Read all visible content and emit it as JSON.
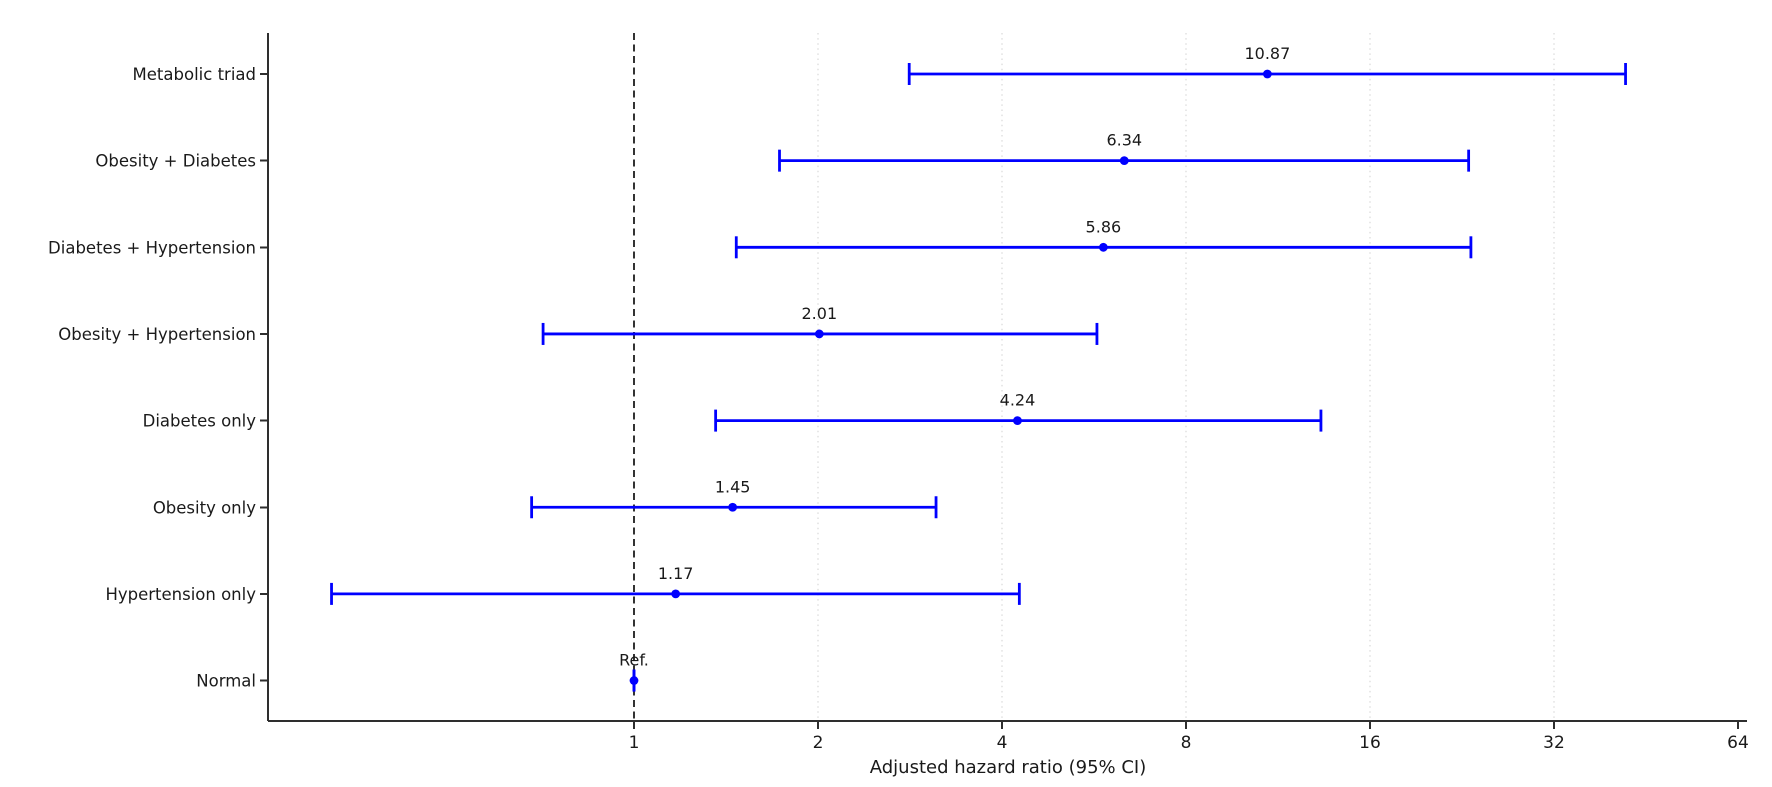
{
  "chart_data": {
    "type": "scatter",
    "variant": "forest_plot_errorbar",
    "title": "",
    "xlabel": "Adjusted hazard ratio (95% CI)",
    "ylabel": "",
    "x_scale": "log2",
    "xlim": [
      0.25,
      66
    ],
    "x_ticks": [
      1,
      2,
      4,
      8,
      16,
      32,
      64
    ],
    "x_tick_labels": [
      "1",
      "2",
      "4",
      "8",
      "16",
      "32",
      "64"
    ],
    "x_grid": [
      2,
      4,
      8,
      16,
      32
    ],
    "grid": "vertical-dotted",
    "legend": "none",
    "reference_line": {
      "x": 1,
      "style": "dashed"
    },
    "rows": [
      {
        "label": "Metabolic triad",
        "hr": 10.87,
        "ci_low": 2.82,
        "ci_high": 41.9,
        "value_label": "10.87"
      },
      {
        "label": "Obesity + Diabetes",
        "hr": 6.34,
        "ci_low": 1.73,
        "ci_high": 23.2,
        "value_label": "6.34"
      },
      {
        "label": "Diabetes + Hypertension",
        "hr": 5.86,
        "ci_low": 1.47,
        "ci_high": 23.4,
        "value_label": "5.86"
      },
      {
        "label": "Obesity + Hypertension",
        "hr": 2.01,
        "ci_low": 0.71,
        "ci_high": 5.72,
        "value_label": "2.01"
      },
      {
        "label": "Diabetes only",
        "hr": 4.24,
        "ci_low": 1.36,
        "ci_high": 13.3,
        "value_label": "4.24"
      },
      {
        "label": "Obesity only",
        "hr": 1.45,
        "ci_low": 0.68,
        "ci_high": 3.12,
        "value_label": "1.45"
      },
      {
        "label": "Hypertension only",
        "hr": 1.17,
        "ci_low": 0.32,
        "ci_high": 4.27,
        "value_label": "1.17"
      },
      {
        "label": "Normal",
        "hr": 1.0,
        "ci_low": 1.0,
        "ci_high": 1.0,
        "value_label": "Ref."
      }
    ]
  },
  "colors": {
    "errorbar": "#0000ff",
    "axis": "#2e2e2e",
    "grid": "#d9d9d9",
    "reference_line": "#000000",
    "text": "#1a1a1a",
    "background": "#ffffff"
  }
}
